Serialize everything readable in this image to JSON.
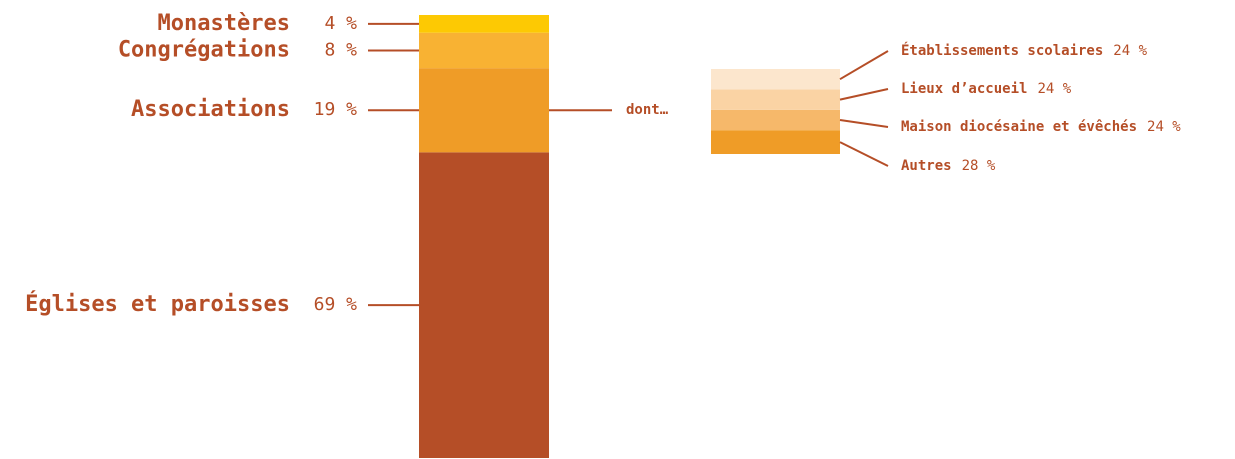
{
  "colors": {
    "text": "#b54e27",
    "line": "#b54e27"
  },
  "chart_data": [
    {
      "type": "bar",
      "stacked": true,
      "orientation": "vertical",
      "segments": [
        {
          "label": "Églises et paroisses",
          "value": 69,
          "value_text": "69 %",
          "color": "#b54e27"
        },
        {
          "label": "Associations",
          "value": 19,
          "value_text": "19 %",
          "color": "#ef9c27"
        },
        {
          "label": "Congrégations",
          "value": 8,
          "value_text": "8 %",
          "color": "#f8b233"
        },
        {
          "label": "Monastères",
          "value": 4,
          "value_text": "4 %",
          "color": "#fdc903"
        }
      ]
    },
    {
      "type": "bar",
      "stacked": true,
      "orientation": "vertical",
      "title": "dont…",
      "parent": "Associations",
      "segments": [
        {
          "label": "Autres",
          "value": 28,
          "value_text": "28 %",
          "color": "#ef9c27"
        },
        {
          "label": "Maison diocésaine et évêchés",
          "value": 24,
          "value_text": "24 %",
          "color": "#f6b86a"
        },
        {
          "label": "Lieux d’accueil",
          "value": 24,
          "value_text": "24 %",
          "color": "#fad3a4"
        },
        {
          "label": "Établissements scolaires",
          "value": 24,
          "value_text": "24 %",
          "color": "#fce6cd"
        }
      ]
    }
  ]
}
